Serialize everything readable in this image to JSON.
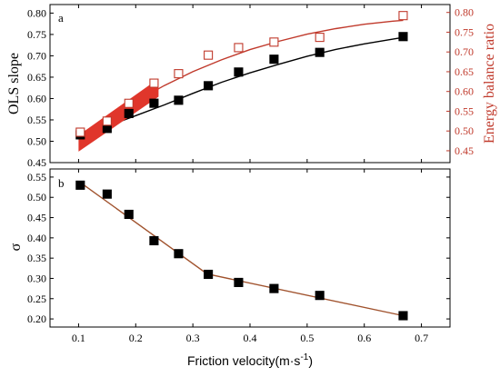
{
  "chart_data": [
    {
      "type": "scatter",
      "panel_label": "a",
      "title": "",
      "xlabel": "Friction velocity(m·s",
      "xlabel_sup": "-1",
      "xlabel_close": ")",
      "xlim": [
        0.05,
        0.75
      ],
      "x_ticks": [
        "0.1",
        "0.2",
        "0.3",
        "0.4",
        "0.5",
        "0.6",
        "0.7"
      ],
      "x_tick_values": [
        0.1,
        0.2,
        0.3,
        0.4,
        0.5,
        0.6,
        0.7
      ],
      "ylabel": "OLS slope",
      "ylim": [
        0.45,
        0.82
      ],
      "y_ticks": [
        "0.45",
        "0.50",
        "0.55",
        "0.60",
        "0.65",
        "0.70",
        "0.75",
        "0.80"
      ],
      "y_tick_values": [
        0.45,
        0.5,
        0.55,
        0.6,
        0.65,
        0.7,
        0.75,
        0.8
      ],
      "y2label": "Energy balance ratio",
      "y2lim": [
        0.42,
        0.82
      ],
      "y2_ticks": [
        "0.45",
        "0.50",
        "0.55",
        "0.60",
        "0.65",
        "0.70",
        "0.75",
        "0.80"
      ],
      "y2_tick_values": [
        0.45,
        0.5,
        0.55,
        0.6,
        0.65,
        0.7,
        0.75,
        0.8
      ],
      "grid": false,
      "series": [
        {
          "axis": "left",
          "marker": "filled-square",
          "color": "#000000",
          "x": [
            0.103,
            0.15,
            0.188,
            0.232,
            0.275,
            0.327,
            0.38,
            0.442,
            0.522,
            0.668
          ],
          "y": [
            0.515,
            0.53,
            0.565,
            0.589,
            0.596,
            0.63,
            0.662,
            0.692,
            0.708,
            0.745
          ],
          "fit": {
            "x": [
              0.1,
              0.15,
              0.2,
              0.25,
              0.3,
              0.35,
              0.4,
              0.45,
              0.5,
              0.55,
              0.6,
              0.65,
              0.668
            ],
            "y": [
              0.51,
              0.535,
              0.56,
              0.585,
              0.612,
              0.638,
              0.66,
              0.68,
              0.699,
              0.715,
              0.728,
              0.739,
              0.743
            ]
          }
        },
        {
          "axis": "right",
          "marker": "open-square",
          "color": "#c0392b",
          "x": [
            0.103,
            0.15,
            0.188,
            0.232,
            0.275,
            0.327,
            0.38,
            0.442,
            0.522,
            0.668
          ],
          "y": [
            0.497,
            0.525,
            0.57,
            0.621,
            0.645,
            0.692,
            0.711,
            0.725,
            0.737,
            0.792
          ],
          "fit": {
            "x": [
              0.1,
              0.15,
              0.2,
              0.25,
              0.3,
              0.35,
              0.4,
              0.45,
              0.5,
              0.55,
              0.6,
              0.65,
              0.668
            ],
            "y": [
              0.48,
              0.53,
              0.575,
              0.615,
              0.65,
              0.68,
              0.706,
              0.727,
              0.745,
              0.759,
              0.77,
              0.778,
              0.78
            ]
          }
        }
      ]
    },
    {
      "type": "scatter",
      "panel_label": "b",
      "title": "",
      "xlim": [
        0.05,
        0.75
      ],
      "ylabel": "σ",
      "ylim": [
        0.18,
        0.57
      ],
      "y_ticks": [
        "0.20",
        "0.25",
        "0.30",
        "0.35",
        "0.40",
        "0.45",
        "0.50",
        "0.55"
      ],
      "y_tick_values": [
        0.2,
        0.25,
        0.3,
        0.35,
        0.4,
        0.45,
        0.5,
        0.55
      ],
      "grid": false,
      "series": [
        {
          "axis": "left",
          "marker": "filled-square",
          "color": "#000000",
          "line_color": "#a0522d",
          "x": [
            0.103,
            0.15,
            0.188,
            0.232,
            0.275,
            0.327,
            0.38,
            0.442,
            0.522,
            0.668
          ],
          "y": [
            0.53,
            0.508,
            0.458,
            0.393,
            0.361,
            0.31,
            0.29,
            0.275,
            0.258,
            0.208
          ],
          "fit": {
            "x": [
              0.1,
              0.325,
              0.668
            ],
            "y": [
              0.54,
              0.311,
              0.208
            ]
          }
        }
      ]
    }
  ]
}
